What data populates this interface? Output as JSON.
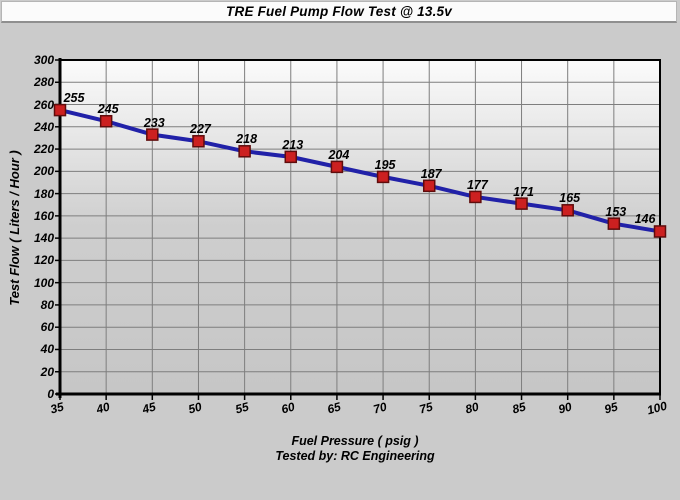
{
  "title": "TRE Fuel Pump Flow Test @ 13.5v",
  "footer": "Tested by: RC Engineering",
  "chart_data": {
    "type": "line",
    "title": "TRE Fuel Pump Flow Test @ 13.5v",
    "xlabel": "Fuel Pressure ( psig )",
    "ylabel": "Test Flow ( Liters / Hour )",
    "footer": "Tested by: RC Engineering",
    "x": [
      35,
      40,
      45,
      50,
      55,
      60,
      65,
      70,
      75,
      80,
      85,
      90,
      95,
      100
    ],
    "series": [
      {
        "name": "Test Flow",
        "values": [
          255,
          245,
          233,
          227,
          218,
          213,
          204,
          195,
          187,
          177,
          171,
          165,
          153,
          146
        ]
      }
    ],
    "data_labels": [
      255,
      245,
      233,
      227,
      218,
      213,
      204,
      195,
      187,
      177,
      171,
      165,
      153,
      146
    ],
    "xlim": [
      35,
      100
    ],
    "ylim": [
      0,
      300
    ],
    "xtick_step": 5,
    "ytick_step": 20,
    "grid": true,
    "legend": "none",
    "colors": {
      "line": "#2121a8",
      "marker_fill": "#cc2020",
      "marker_border": "#5f0c0c",
      "gridline": "#7e7e7e",
      "axis": "#000000",
      "plot_bg_top": "#fbfbfb",
      "plot_bg_bottom": "#c6c6c6",
      "page_bg": "#cbcbcb",
      "title_bg": "#fbfbfb"
    }
  }
}
